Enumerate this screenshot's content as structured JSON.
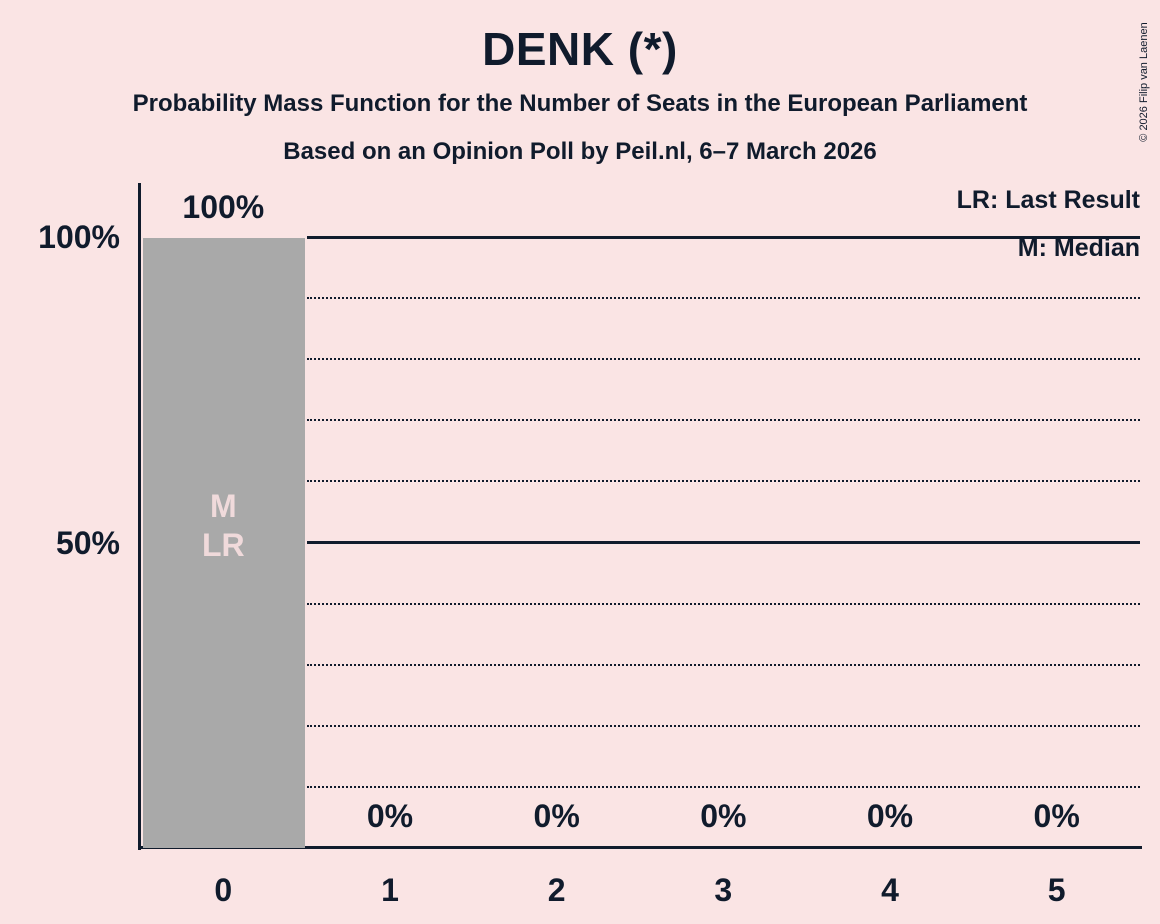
{
  "header": {
    "title": "DENK (*)",
    "subtitle": "Probability Mass Function for the Number of Seats in the European Parliament",
    "source_line": "Based on an Opinion Poll by Peil.nl, 6–7 March 2026"
  },
  "copyright": "© 2026 Filip van Laenen",
  "colors": {
    "background": "#fae4e4",
    "ink": "#101b2c",
    "bar": "#a9a9a9",
    "bar_label": "#f0dadb"
  },
  "chart_data": {
    "type": "bar",
    "title": "DENK (*)",
    "categories": [
      "0",
      "1",
      "2",
      "3",
      "4",
      "5"
    ],
    "values": [
      100,
      0,
      0,
      0,
      0,
      0
    ],
    "value_labels": [
      "100%",
      "0%",
      "0%",
      "0%",
      "0%",
      "0%"
    ],
    "ylim": [
      0,
      100
    ],
    "yticks": [
      {
        "value": 100,
        "label": "100%"
      },
      {
        "value": 50,
        "label": "50%"
      }
    ],
    "solid_gridlines": [
      100,
      50
    ],
    "dotted_gridlines": [
      90,
      80,
      70,
      60,
      40,
      30,
      20,
      10
    ],
    "legend": {
      "lr": "LR: Last Result",
      "m": "M: Median"
    },
    "annotation": {
      "category_index": 0,
      "lines": [
        "M",
        "LR"
      ]
    },
    "grid_on": true,
    "legend_position": "top-right"
  }
}
